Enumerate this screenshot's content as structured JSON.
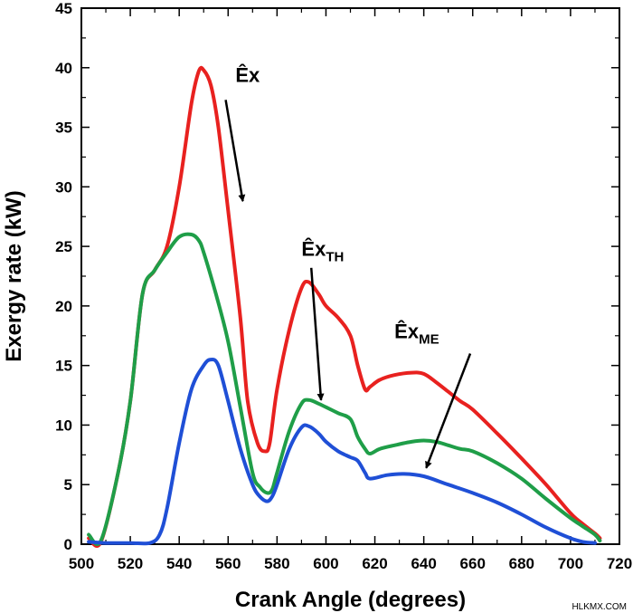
{
  "chart_data": {
    "type": "line",
    "title": "",
    "xlabel": "Crank Angle (degrees)",
    "ylabel": "Exergy rate (kW)",
    "xlim": [
      500,
      720
    ],
    "ylim": [
      0,
      45
    ],
    "xticks": [
      500,
      520,
      540,
      560,
      580,
      600,
      620,
      640,
      660,
      680,
      700,
      720
    ],
    "yticks": [
      0,
      5,
      10,
      15,
      20,
      25,
      30,
      35,
      40,
      45
    ],
    "grid": false,
    "legend": "none",
    "series": [
      {
        "name": "Êx",
        "color": "#e8211f",
        "x": [
          503,
          508,
          515,
          520,
          525,
          530,
          535,
          540,
          545,
          548,
          550,
          553,
          556,
          560,
          565,
          568,
          572,
          575,
          577,
          580,
          585,
          590,
          593,
          597,
          600,
          605,
          610,
          613,
          616,
          618,
          622,
          628,
          635,
          640,
          645,
          650,
          655,
          660,
          670,
          680,
          690,
          700,
          705,
          710,
          712
        ],
        "y": [
          0.5,
          0.2,
          6,
          12,
          21,
          23,
          25,
          30,
          37,
          39.7,
          39.8,
          38.5,
          35,
          28,
          19,
          12,
          8.5,
          7.8,
          8.5,
          13,
          18,
          21.5,
          22,
          21,
          20,
          19,
          17.5,
          15,
          13,
          13.2,
          13.8,
          14.2,
          14.4,
          14.3,
          13.6,
          12.8,
          12,
          11.3,
          9.3,
          7.2,
          5,
          2.6,
          1.7,
          0.9,
          0.5
        ]
      },
      {
        "name": "ÊxTH",
        "color": "#1f9e48",
        "x": [
          503,
          508,
          515,
          520,
          525,
          530,
          535,
          540,
          545,
          548,
          550,
          555,
          560,
          565,
          570,
          573,
          576,
          578,
          580,
          585,
          590,
          593,
          597,
          600,
          605,
          610,
          613,
          616,
          618,
          622,
          628,
          635,
          640,
          645,
          650,
          655,
          660,
          670,
          680,
          690,
          700,
          705,
          710,
          712
        ],
        "y": [
          0.8,
          0.3,
          6,
          12,
          21,
          23,
          24.5,
          25.8,
          26,
          25.5,
          24.5,
          21,
          17,
          11.5,
          6,
          4.8,
          4.3,
          4.6,
          6,
          9.5,
          11.8,
          12.1,
          11.8,
          11.5,
          11,
          10.5,
          9,
          8,
          7.6,
          8,
          8.3,
          8.6,
          8.7,
          8.6,
          8.3,
          8,
          7.8,
          6.8,
          5.5,
          3.8,
          2.2,
          1.5,
          0.8,
          0.3
        ]
      },
      {
        "name": "ÊxME",
        "color": "#1f4fd6",
        "x": [
          503,
          510,
          520,
          528,
          532,
          535,
          540,
          545,
          550,
          553,
          556,
          560,
          565,
          570,
          573,
          576,
          578,
          580,
          585,
          590,
          593,
          597,
          600,
          605,
          610,
          613,
          616,
          618,
          625,
          632,
          640,
          650,
          660,
          670,
          680,
          690,
          700,
          705,
          710
        ],
        "y": [
          0.2,
          0.1,
          0.1,
          0.1,
          0.8,
          3,
          8.5,
          13,
          15,
          15.5,
          15,
          12,
          8,
          5,
          4,
          3.6,
          4,
          5,
          8,
          9.8,
          9.9,
          9.3,
          8.6,
          7.8,
          7.3,
          7,
          6,
          5.5,
          5.8,
          5.9,
          5.7,
          5,
          4.3,
          3.5,
          2.5,
          1.4,
          0.5,
          0.2,
          0.1
        ]
      }
    ],
    "annotations": [
      {
        "base": "Êx",
        "sub": "",
        "text_x": 563,
        "text_y": 38.8,
        "arrow_from": [
          559,
          37.3
        ],
        "arrow_to": [
          566,
          28.8
        ]
      },
      {
        "base": "Êx",
        "sub": "TH",
        "text_x": 590,
        "text_y": 24.2,
        "arrow_from": [
          594,
          23.2
        ],
        "arrow_to": [
          598,
          12.1
        ]
      },
      {
        "base": "Êx",
        "sub": "ME",
        "text_x": 628,
        "text_y": 17.3,
        "arrow_from": [
          659,
          16.0
        ],
        "arrow_to": [
          641,
          6.4
        ]
      }
    ]
  },
  "watermark": "HLKMX.COM"
}
